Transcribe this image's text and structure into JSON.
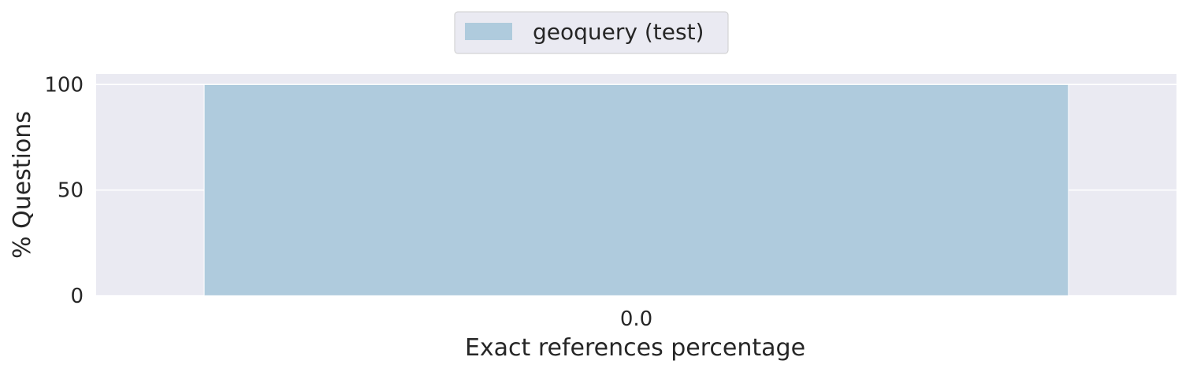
{
  "chart_data": {
    "type": "bar",
    "categories": [
      "0.0"
    ],
    "series": [
      {
        "name": "geoquery (test)",
        "values": [
          100
        ],
        "color": "#afcbdd"
      }
    ],
    "xlabel": "Exact references percentage",
    "ylabel": "% Questions",
    "ylim": [
      0,
      105
    ],
    "yticks": [
      0,
      50,
      100
    ],
    "grid": true,
    "legend_position": "top-center",
    "background_color": "#eaeaf2",
    "grid_color": "#ffffff"
  }
}
